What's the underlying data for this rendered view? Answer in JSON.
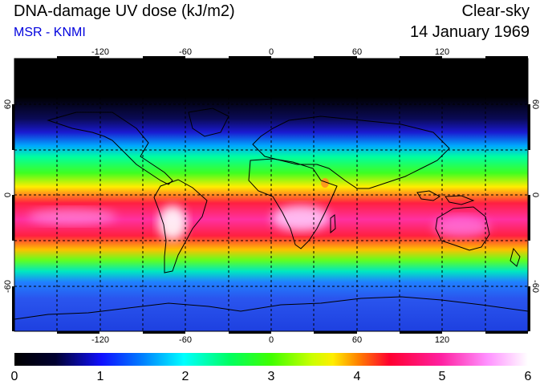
{
  "header": {
    "title": "DNA-damage UV dose (kJ/m2)",
    "subtitle": "MSR - KNMI",
    "sky_condition": "Clear-sky",
    "date": "14 January 1969"
  },
  "colors": {
    "subtitle": "#0000dd",
    "ocean_south": "#2a55ee",
    "land_outline": "#000000",
    "grid": "#000000"
  },
  "map": {
    "projection": "equirectangular",
    "lon_range": [
      -180,
      180
    ],
    "lat_range": [
      -90,
      90
    ],
    "lon_ticks": [
      "-120",
      "-60",
      "0",
      "60",
      "120"
    ],
    "lat_ticks": [
      "60",
      "0",
      "-60"
    ],
    "gridlines": "dashed every 30 degrees"
  },
  "colorbar": {
    "labels": [
      "0",
      "1",
      "2",
      "3",
      "4",
      "5",
      "6"
    ],
    "min": 0,
    "max": 6
  }
}
